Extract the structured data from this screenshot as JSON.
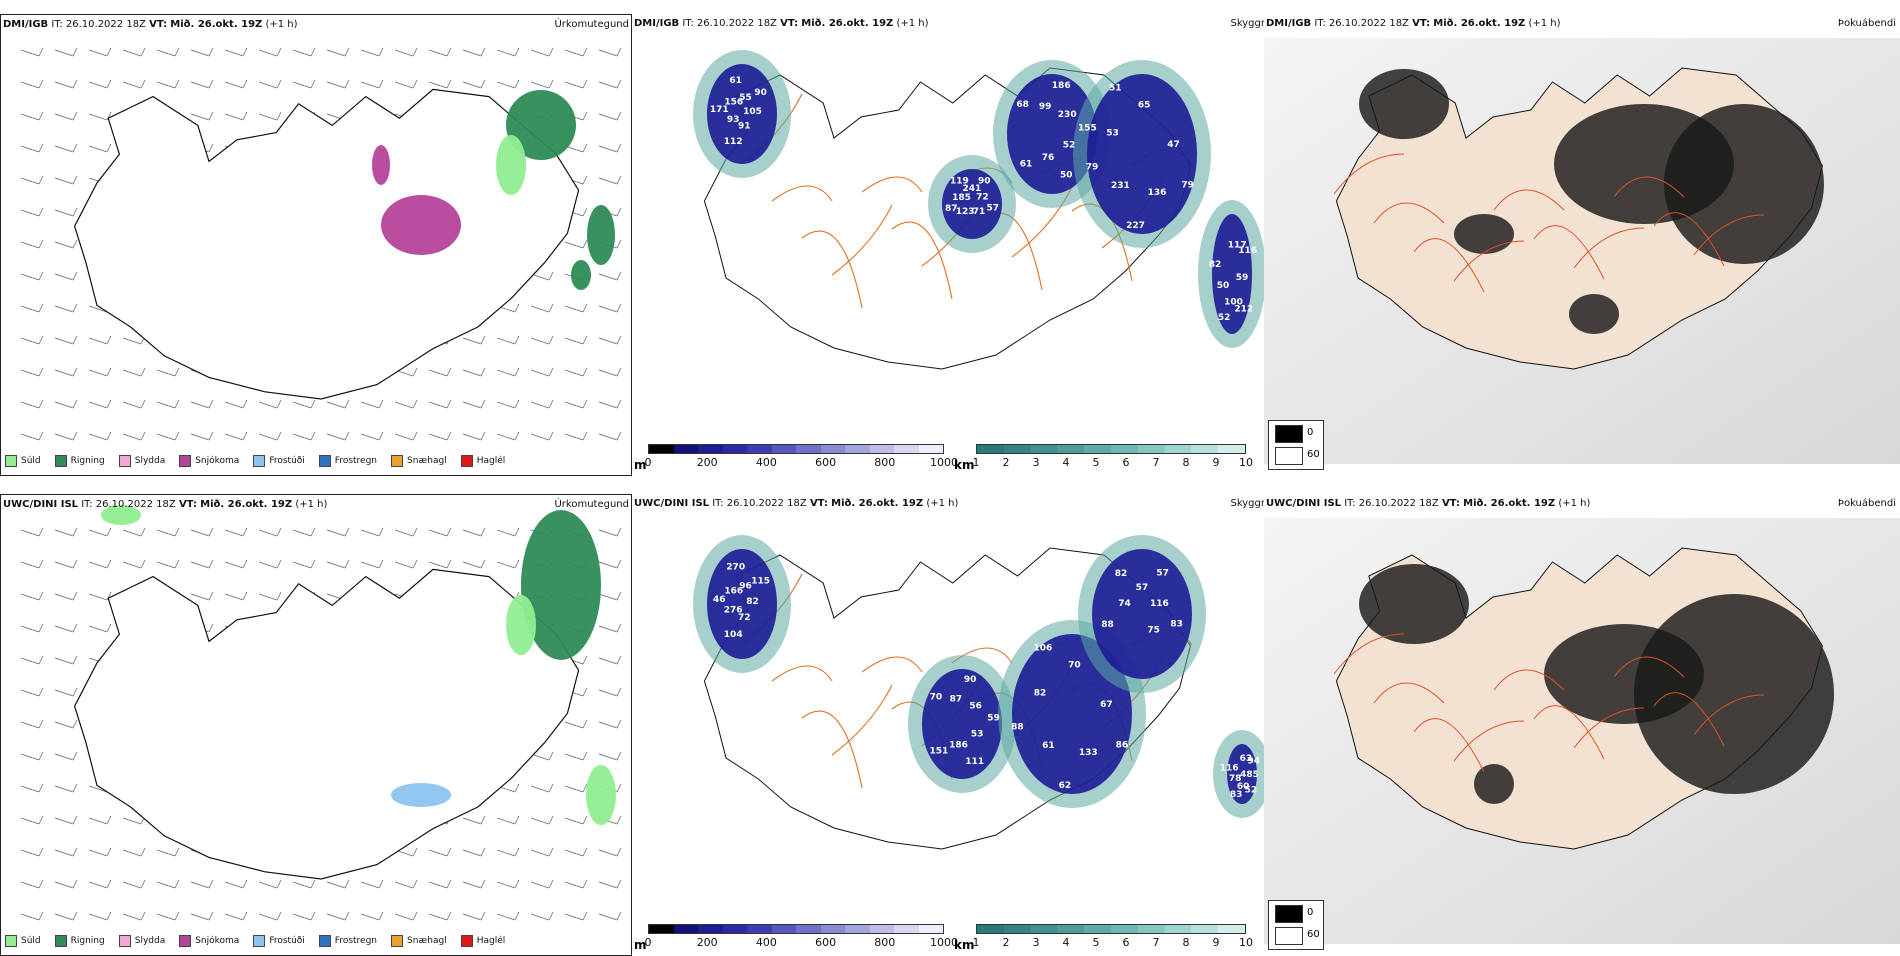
{
  "rows": [
    {
      "model": "DMI/IGB",
      "header": {
        "it_label": "IT:",
        "it_value": "26.10.2022 18Z",
        "vt_label": "VT:",
        "vt_value": "Mið. 26.okt. 19Z",
        "lead": "(+1 h)"
      },
      "panel_titles": {
        "precip": "Úrkomutegund",
        "vis": "Skyggni",
        "fog": "Þokuábendi"
      },
      "vis_labels": [
        "105",
        "61",
        "65",
        "71",
        "82",
        "90",
        "76",
        "51",
        "57",
        "50",
        "55",
        "50",
        "53",
        "72",
        "52",
        "61",
        "52",
        "79",
        "90",
        "100",
        "156",
        "155",
        "231",
        "241",
        "212",
        "171",
        "230",
        "227",
        "119",
        "59",
        "93",
        "186",
        "136",
        "185",
        "116",
        "112",
        "99",
        "79",
        "87",
        "117",
        "91",
        "68",
        "47",
        "123"
      ]
    },
    {
      "model": "UWC/DINI ISL",
      "header": {
        "it_label": "IT:",
        "it_value": "26.10.2022 18Z",
        "vt_label": "VT:",
        "vt_value": "Mið. 26.okt. 19Z",
        "lead": "(+1 h)"
      },
      "panel_titles": {
        "precip": "Úrkomutegund",
        "vis": "Skyggni",
        "fog": "Þokuábendi"
      },
      "vis_labels": [
        "82",
        "151",
        "70",
        "75",
        "116",
        "115",
        "186",
        "106",
        "83",
        "78",
        "96",
        "111",
        "82",
        "116",
        "83",
        "270",
        "53",
        "88",
        "57",
        "60",
        "166",
        "59",
        "61",
        "57",
        "52",
        "46",
        "56",
        "62",
        "82",
        "485",
        "276",
        "90",
        "133",
        "74",
        "94",
        "104",
        "87",
        "86",
        "88",
        "63",
        "72",
        "70",
        "67"
      ]
    }
  ],
  "precip_legend": [
    {
      "label": "Súld",
      "color": "#90ee90"
    },
    {
      "label": "Rigning",
      "color": "#2e8b57"
    },
    {
      "label": "Slydda",
      "color": "#f4a6d4"
    },
    {
      "label": "Snjókoma",
      "color": "#b5449b"
    },
    {
      "label": "Frostúði",
      "color": "#8cc4f0"
    },
    {
      "label": "Frostregn",
      "color": "#2f72c0"
    },
    {
      "label": "Snæhagl",
      "color": "#f0a030"
    },
    {
      "label": "Haglél",
      "color": "#e01818"
    }
  ],
  "colorbars": {
    "m": {
      "unit": "m",
      "ticks": [
        "0",
        "200",
        "400",
        "600",
        "800",
        "1000"
      ],
      "colors": [
        "#000000",
        "#111178",
        "#1c1c96",
        "#2a2aa8",
        "#3c3cb4",
        "#5656c0",
        "#7070ca",
        "#8a8ad4",
        "#a4a4de",
        "#bebee8",
        "#d8d8f2",
        "#eeeefa"
      ]
    },
    "km": {
      "unit": "km",
      "ticks": [
        "1",
        "2",
        "3",
        "4",
        "5",
        "6",
        "7",
        "8",
        "9",
        "10"
      ],
      "colors": [
        "#2a7a78",
        "#358682",
        "#40928c",
        "#4e9e98",
        "#5eaaa4",
        "#72b8b2",
        "#88c6c0",
        "#a0d4ce",
        "#b8e2dc",
        "#d2eeea"
      ]
    }
  },
  "fog_legend": [
    {
      "label": "0",
      "color": "#000000"
    },
    {
      "label": "60",
      "color": "#ffffff"
    }
  ],
  "colors": {
    "land_fill": "#f3e2d2",
    "roads": "#e07020",
    "coast": "#111111",
    "sea_fog": "#d8d8d8"
  }
}
